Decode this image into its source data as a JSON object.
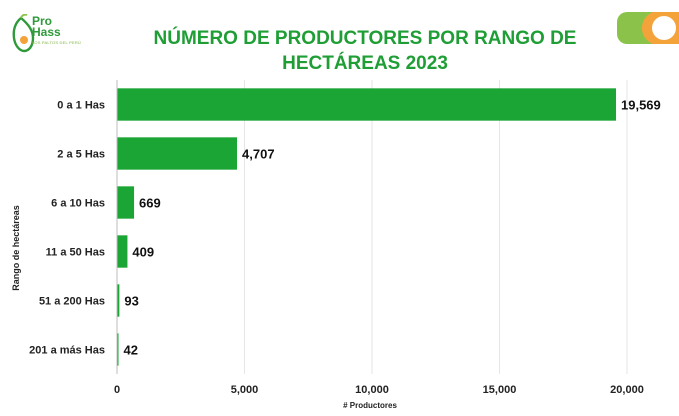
{
  "brand": {
    "name_line1": "Pro",
    "name_line2": "Hass",
    "tagline": "LOS PALTOS DEL PERÚ"
  },
  "colors": {
    "bar": "#1ba534",
    "title": "#1e9e35",
    "logo_green": "#2e9a3a",
    "accent_orange": "#f4a23a",
    "accent_green": "#8bc34a"
  },
  "chart_data": {
    "type": "bar",
    "orientation": "horizontal",
    "title": "NÚMERO DE PRODUCTORES POR RANGO DE HECTÁREAS 2023",
    "xlabel": "# Productores",
    "ylabel": "Rango de hectáreas",
    "categories": [
      "0 a 1 Has",
      "2 a 5 Has",
      "6 a 10 Has",
      "11 a 50 Has",
      "51 a 200 Has",
      "201 a más Has"
    ],
    "values": [
      19569,
      4707,
      669,
      409,
      93,
      42
    ],
    "value_labels": [
      "19,569",
      "4,707",
      "669",
      "409",
      "93",
      "42"
    ],
    "xlim": [
      0,
      20000
    ],
    "xticks": [
      0,
      5000,
      10000,
      15000,
      20000
    ],
    "xtick_labels": [
      "0",
      "5,000",
      "10,000",
      "15,000",
      "20,000"
    ],
    "grid": true
  }
}
